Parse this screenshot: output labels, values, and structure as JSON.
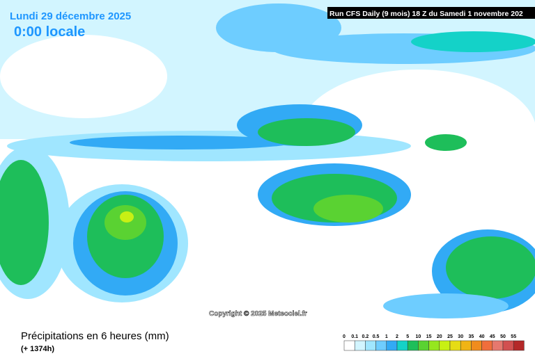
{
  "header": {
    "date": "Lundi 29 décembre 2025",
    "time": "0:00 locale",
    "run": "Run CFS Daily (9 mois) 18 Z du Samedi 1 novembre 202"
  },
  "copyright": "Copyright © 2025 Meteociel.fr",
  "footer": {
    "title": "Précipitations en 6 heures (mm)",
    "lead": "(+ 1374h)"
  },
  "legend": {
    "steps": [
      {
        "label": "0",
        "color": "#ffffff"
      },
      {
        "label": "0.1",
        "color": "#d2f5ff"
      },
      {
        "label": "0.2",
        "color": "#a0e6ff"
      },
      {
        "label": "0.5",
        "color": "#6ecdff"
      },
      {
        "label": "1",
        "color": "#32aaf5"
      },
      {
        "label": "2",
        "color": "#14d2c8"
      },
      {
        "label": "5",
        "color": "#1ebe5a"
      },
      {
        "label": "10",
        "color": "#5ad232"
      },
      {
        "label": "15",
        "color": "#96e61e"
      },
      {
        "label": "20",
        "color": "#c8f014"
      },
      {
        "label": "25",
        "color": "#e6dc14"
      },
      {
        "label": "30",
        "color": "#f0b414"
      },
      {
        "label": "35",
        "color": "#f08c1e"
      },
      {
        "label": "40",
        "color": "#f06e3c"
      },
      {
        "label": "45",
        "color": "#e6786e"
      },
      {
        "label": "50",
        "color": "#d25050"
      },
      {
        "label": "55",
        "color": "#b42828"
      }
    ]
  }
}
